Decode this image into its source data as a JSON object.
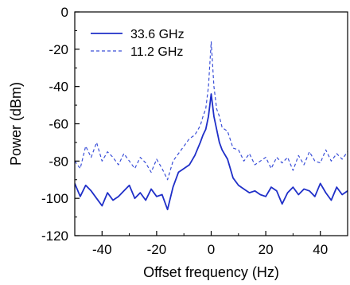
{
  "chart_data": {
    "type": "line",
    "xlabel": "Offset frequency (Hz)",
    "ylabel": "Power (dBm)",
    "xlim": [
      -50,
      50
    ],
    "ylim": [
      -120,
      0
    ],
    "xticks": [
      -40,
      -20,
      0,
      20,
      40
    ],
    "yticks": [
      0,
      -20,
      -40,
      -60,
      -80,
      -100,
      -120
    ],
    "grid": false,
    "legend_position": "top-left",
    "series": [
      {
        "name": "33.6 GHz",
        "color": "#1f2fc8",
        "line_style": "solid",
        "x": [
          -50,
          -48,
          -46,
          -44,
          -42,
          -40,
          -38,
          -36,
          -34,
          -32,
          -30,
          -28,
          -26,
          -24,
          -22,
          -20,
          -18,
          -16,
          -14,
          -12,
          -10,
          -8,
          -6,
          -4,
          -3,
          -2,
          -1,
          -0.5,
          0,
          0.5,
          1,
          2,
          3,
          4,
          6,
          8,
          10,
          12,
          14,
          16,
          18,
          20,
          22,
          24,
          26,
          28,
          30,
          32,
          34,
          36,
          38,
          40,
          42,
          44,
          46,
          48,
          50
        ],
        "y": [
          -92,
          -99,
          -93,
          -96,
          -100,
          -104,
          -97,
          -101,
          -99,
          -96,
          -93,
          -100,
          -97,
          -101,
          -95,
          -99,
          -98,
          -106,
          -94,
          -86,
          -84,
          -82,
          -77,
          -70,
          -66,
          -63,
          -56,
          -50,
          -44,
          -50,
          -56,
          -63,
          -70,
          -74,
          -79,
          -89,
          -93,
          -95,
          -97,
          -96,
          -98,
          -99,
          -94,
          -96,
          -103,
          -97,
          -94,
          -98,
          -95,
          -96,
          -99,
          -92,
          -97,
          -101,
          -94,
          -98,
          -96
        ]
      },
      {
        "name": "11.2 GHz",
        "color": "#3a4fd8",
        "line_style": "dashed",
        "x": [
          -50,
          -48,
          -46,
          -44,
          -42,
          -40,
          -38,
          -36,
          -34,
          -32,
          -30,
          -28,
          -26,
          -24,
          -22,
          -20,
          -18,
          -16,
          -14,
          -12,
          -10,
          -8,
          -6,
          -4,
          -3,
          -2,
          -1,
          -0.5,
          0,
          0.5,
          1,
          2,
          3,
          4,
          6,
          8,
          10,
          12,
          14,
          16,
          18,
          20,
          22,
          24,
          26,
          28,
          30,
          32,
          34,
          36,
          38,
          40,
          42,
          44,
          46,
          48,
          50
        ],
        "y": [
          -80,
          -84,
          -72,
          -78,
          -70,
          -80,
          -75,
          -78,
          -82,
          -76,
          -80,
          -84,
          -78,
          -81,
          -86,
          -79,
          -84,
          -90,
          -80,
          -76,
          -72,
          -68,
          -66,
          -61,
          -56,
          -52,
          -40,
          -28,
          -16,
          -28,
          -40,
          -52,
          -56,
          -62,
          -64,
          -73,
          -74,
          -80,
          -76,
          -82,
          -80,
          -78,
          -84,
          -78,
          -81,
          -78,
          -85,
          -77,
          -82,
          -75,
          -80,
          -81,
          -74,
          -80,
          -76,
          -79,
          -75
        ]
      }
    ]
  }
}
